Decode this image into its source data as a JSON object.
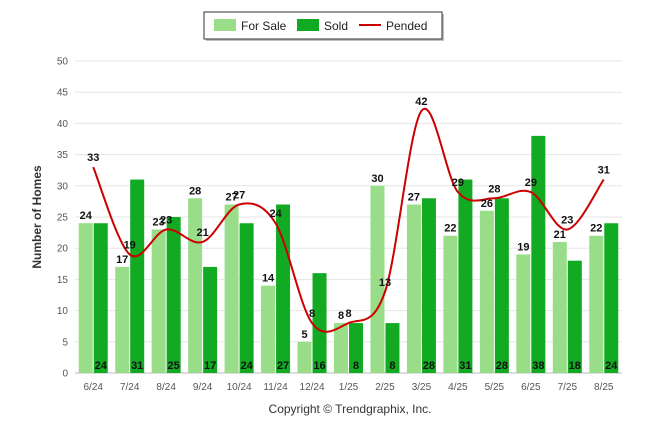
{
  "chart_data": {
    "type": "bar",
    "ylabel": "Number of Homes",
    "ylim": [
      0,
      50
    ],
    "yticks": [
      0,
      5,
      10,
      15,
      20,
      25,
      30,
      35,
      40,
      45,
      50
    ],
    "grid": true,
    "legend_position": "top-center",
    "categories": [
      "6/24",
      "7/24",
      "8/24",
      "9/24",
      "10/24",
      "11/24",
      "12/24",
      "1/25",
      "2/25",
      "3/25",
      "4/25",
      "5/25",
      "6/25",
      "7/25",
      "8/25"
    ],
    "series": [
      {
        "name": "For Sale",
        "kind": "bar",
        "color": "#99dd88",
        "values": [
          24,
          17,
          23,
          28,
          27,
          14,
          5,
          8,
          30,
          27,
          22,
          26,
          19,
          21,
          22
        ]
      },
      {
        "name": "Sold",
        "kind": "bar",
        "color": "#11aa22",
        "values": [
          24,
          31,
          25,
          17,
          24,
          27,
          16,
          8,
          8,
          28,
          31,
          28,
          38,
          18,
          24
        ]
      },
      {
        "name": "Pended",
        "kind": "line",
        "color": "#cc0000",
        "values": [
          33,
          19,
          23,
          21,
          27,
          24,
          8,
          8,
          13,
          42,
          29,
          28,
          29,
          23,
          31
        ]
      }
    ]
  },
  "footer": {
    "copyright": "Copyright © Trendgraphix, Inc."
  }
}
